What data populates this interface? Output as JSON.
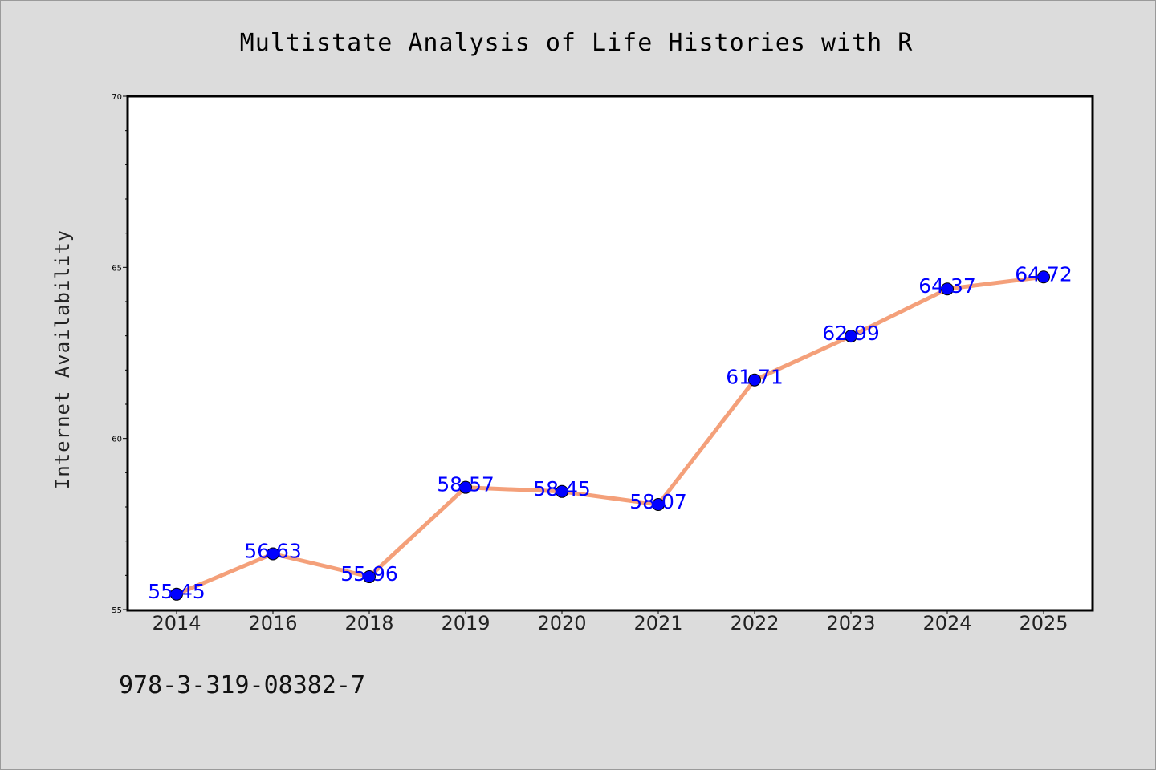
{
  "chart_data": {
    "type": "line",
    "title": "Multistate Analysis of Life Histories with R",
    "xlabel": "",
    "ylabel": "Internet Availability",
    "categories": [
      "2014",
      "2016",
      "2018",
      "2019",
      "2020",
      "2021",
      "2022",
      "2023",
      "2024",
      "2025"
    ],
    "values": [
      55.45,
      56.63,
      55.96,
      58.57,
      58.45,
      58.07,
      61.71,
      62.99,
      64.37,
      64.72
    ],
    "data_labels": [
      "55.45",
      "56.63",
      "55.96",
      "58.57",
      "58.45",
      "58.07",
      "61.71",
      "62.99",
      "64.37",
      "64.72"
    ],
    "ylim": [
      55,
      70
    ],
    "yticks": [
      "55",
      "60",
      "65",
      "70"
    ],
    "grid": false,
    "line_color": "#f4a07a",
    "marker_color": "#0000ff",
    "label_color": "#0000ff",
    "background_color": "#dcdcdc",
    "plot_background": "#ffffff"
  },
  "annotation": "978-3-319-08382-7"
}
